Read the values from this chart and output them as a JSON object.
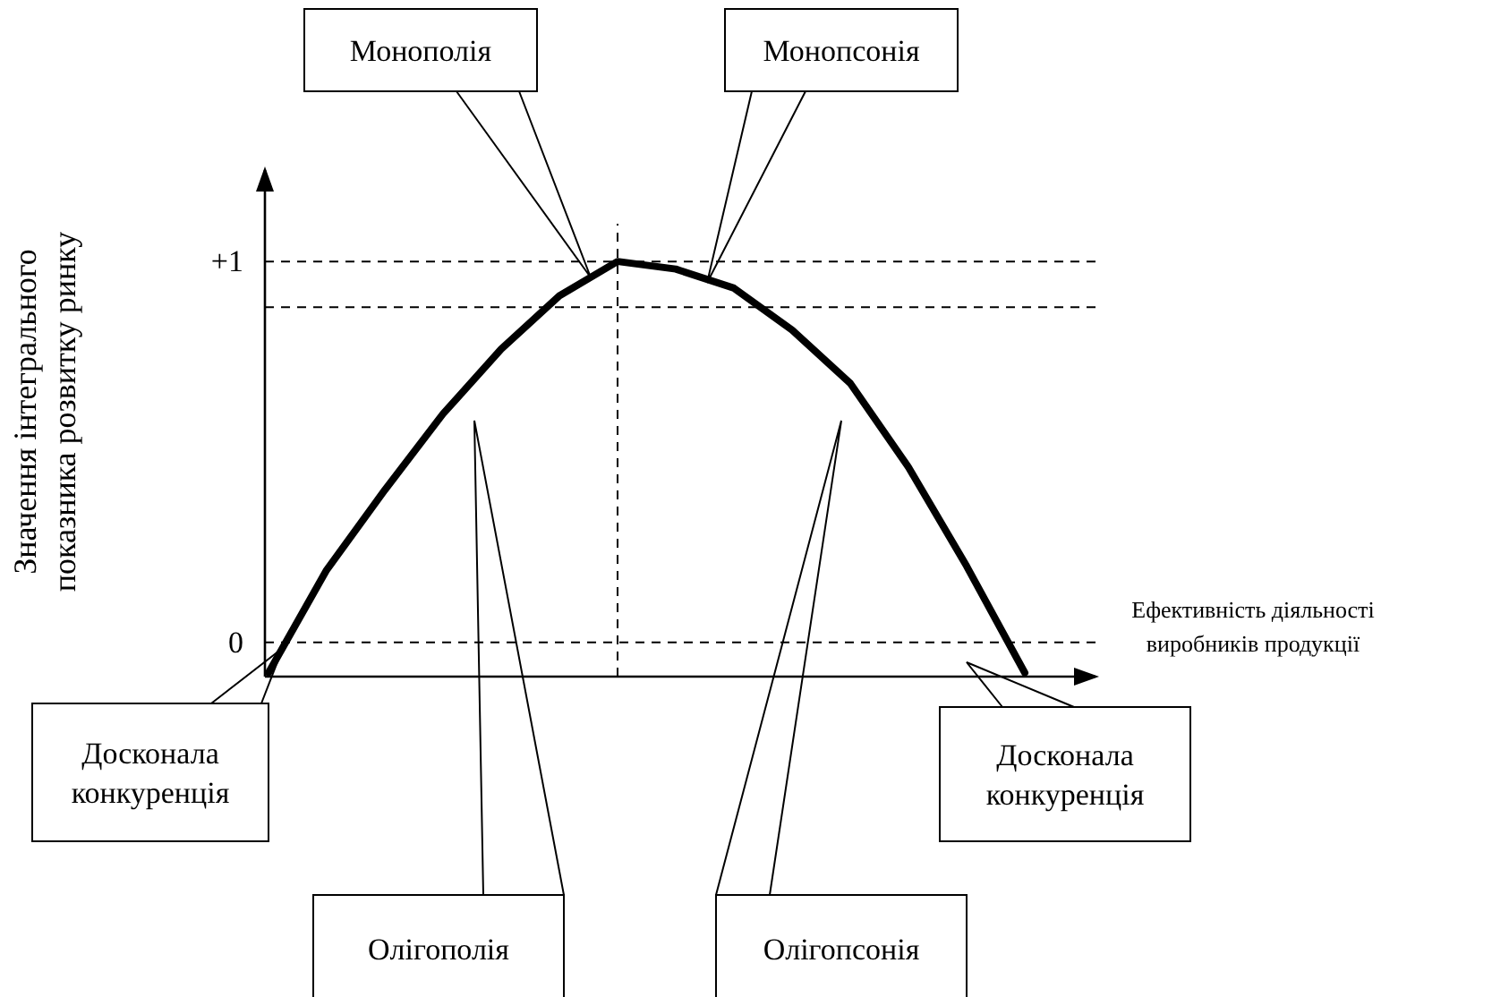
{
  "chart_data": {
    "type": "line",
    "xlabel": "Ефективність діяльності виробників продукції",
    "ylabel": "Значення інтегрального показника розвитку ринку",
    "categories": [
      null,
      null,
      null,
      null,
      null,
      null,
      null,
      null,
      null,
      null,
      null,
      null,
      null,
      null
    ],
    "series": [
      {
        "color": "#000000",
        "values": [
          -0.08,
          0.19,
          0.4,
          0.6,
          0.77,
          0.91,
          1.0,
          0.98,
          0.93,
          0.82,
          0.68,
          0.46,
          0.2,
          -0.08
        ]
      }
    ],
    "ylim": [
      -0.09,
      1.24
    ],
    "yticks": [
      0,
      {
        "value": 1,
        "label": "+1"
      }
    ],
    "tick_labels": "y",
    "marker": "none",
    "line_style": "solid",
    "ref_lines": [
      {
        "axis": "y",
        "value": 0,
        "line_style": "dashed",
        "color": "#000000"
      },
      {
        "axis": "y",
        "value": 1,
        "line_style": "dashed",
        "color": "#000000"
      },
      {
        "axis": "y",
        "value": 0.88,
        "line_style": "dashed",
        "color": "#000000"
      }
    ],
    "annotations": [
      "Монополія",
      "Монопсонія",
      "Досконала конкуренція",
      "Досконала конкуренція",
      "Олігополія",
      "Олігопсонія"
    ]
  }
}
